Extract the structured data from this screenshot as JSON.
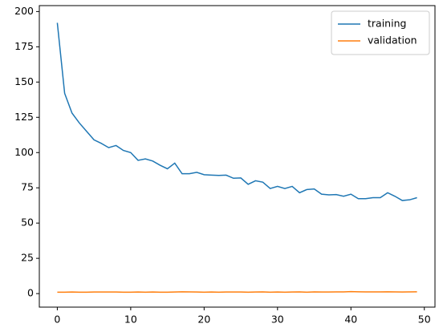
{
  "chart_data": {
    "type": "line",
    "x": [
      0,
      1,
      2,
      3,
      4,
      5,
      6,
      7,
      8,
      9,
      10,
      11,
      12,
      13,
      14,
      15,
      16,
      17,
      18,
      19,
      20,
      21,
      22,
      23,
      24,
      25,
      26,
      27,
      28,
      29,
      30,
      31,
      32,
      33,
      34,
      35,
      36,
      37,
      38,
      39,
      40,
      41,
      42,
      43,
      44,
      45,
      46,
      47,
      48,
      49
    ],
    "series": [
      {
        "name": "training",
        "color": "#1f77b4",
        "values": [
          192,
          142,
          128,
          121,
          115,
          109,
          106.5,
          103.5,
          105,
          101.5,
          100,
          94.5,
          95.5,
          94,
          91,
          88.5,
          92.5,
          85,
          85,
          86,
          84.3,
          84,
          83.8,
          84,
          81.8,
          82,
          77.5,
          80,
          79,
          74.5,
          76,
          74.5,
          76,
          71.5,
          73.8,
          74.2,
          70.5,
          70,
          70.2,
          69,
          70.5,
          67.3,
          67.3,
          68,
          68,
          71.5,
          69,
          66,
          66.5,
          68
        ]
      },
      {
        "name": "validation",
        "color": "#ff7f0e",
        "values": [
          1,
          1,
          1.1,
          1,
          1,
          1.1,
          1.1,
          1.1,
          1.1,
          1,
          1,
          1.1,
          1,
          1.1,
          1,
          1,
          1.1,
          1.3,
          1.2,
          1.1,
          1,
          1.1,
          1,
          1.1,
          1.1,
          1.1,
          1,
          1.1,
          1.2,
          1,
          1.1,
          1,
          1.1,
          1.2,
          1,
          1.2,
          1.1,
          1.1,
          1.2,
          1.2,
          1.4,
          1.3,
          1.2,
          1.2,
          1.2,
          1.3,
          1.2,
          1.1,
          1.2,
          1.3
        ]
      }
    ],
    "xlim": [
      -2.45,
      51.45
    ],
    "xticks": [
      0,
      10,
      20,
      30,
      40,
      50
    ],
    "ylim": [
      -9.6,
      204.2
    ],
    "yticks": [
      0,
      25,
      50,
      75,
      100,
      125,
      150,
      175,
      200
    ],
    "legend": "upper right"
  }
}
